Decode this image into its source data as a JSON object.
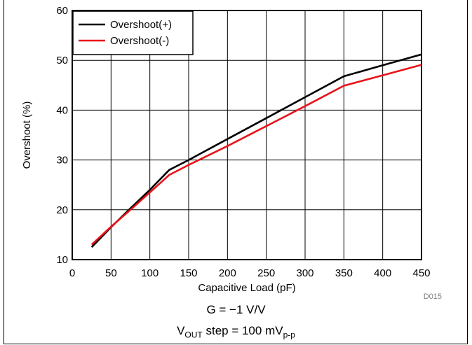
{
  "chart_data": {
    "type": "line",
    "title": "",
    "xlabel": "Capacitive Load (pF)",
    "ylabel": "Overshoot (%)",
    "xlim": [
      0,
      450
    ],
    "ylim": [
      10,
      60
    ],
    "xticks": [
      0,
      50,
      100,
      150,
      200,
      250,
      300,
      350,
      400,
      450
    ],
    "yticks": [
      10,
      20,
      30,
      40,
      50,
      60
    ],
    "grid": true,
    "legend_position": "top-left",
    "series": [
      {
        "name": "Overshoot(+)",
        "color": "#000000",
        "x": [
          25,
          50,
          75,
          100,
          125,
          150,
          200,
          250,
          300,
          350,
          400,
          450
        ],
        "y": [
          12.5,
          16.5,
          20.3,
          24.0,
          28.0,
          30.0,
          34.2,
          38.4,
          42.6,
          46.8,
          49.0,
          51.2
        ]
      },
      {
        "name": "Overshoot(-)",
        "color": "#e8141b",
        "x": [
          25,
          50,
          75,
          100,
          125,
          150,
          200,
          250,
          300,
          350,
          400,
          450
        ],
        "y": [
          13.0,
          16.6,
          20.0,
          23.5,
          27.0,
          29.0,
          32.8,
          36.8,
          40.8,
          44.9,
          47.0,
          49.1
        ]
      }
    ]
  },
  "figure_id": "D015",
  "caption": {
    "line1": "G = −1 V/V",
    "line2_prefix": "V",
    "line2_sub1": "OUT",
    "line2_mid": " step = 100 mV",
    "line2_sub2": "p-p"
  }
}
